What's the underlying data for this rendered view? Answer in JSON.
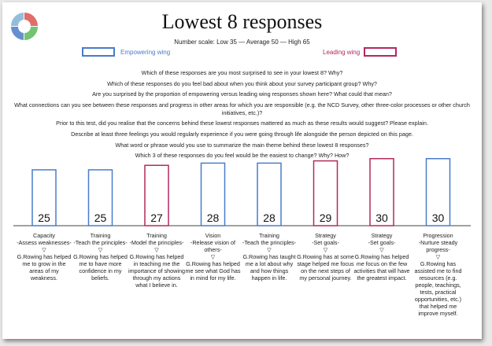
{
  "title": "Lowest 8 responses",
  "scale_text": "Number scale: Low 35 — Average 50 — High 65",
  "legend": {
    "empowering": {
      "label": "Empowering wing",
      "color": "#4a7cc8"
    },
    "leading": {
      "label": "Leading wing",
      "color": "#b22a5f"
    }
  },
  "questions": [
    "Which of these responses are you most surprised to see in your lowest 8? Why?",
    "Which of these responses do you feel bad about when you think about your survey participant group? Why?",
    "Are you surprised by the proportion of empowering versus leading wing responses shown here? What could that mean?",
    "What connections can you see between these responses and progress in other areas for which you are responsible (e.g. the NCD Survey, other three-color processes or other church initiatives, etc.)?",
    "Prior to this test, did you realise that the concerns behind these lowest responses mattered as much as these results would suggest? Please explain.",
    "Describe at least three feelings you would regularly experience if you were going through life alongside the person depicted on this page.",
    "What word or phrase would you use to summarize the main theme behind these lowest 8 responses?",
    "Which 3 of these responses do you feel would be the easiest to change? Why? How?"
  ],
  "chart_data": {
    "type": "bar",
    "ylim": [
      0,
      38
    ],
    "categories": [
      {
        "value": 25,
        "wing": "empowering",
        "name": "Capacity",
        "sub": "-Assess weaknesses-",
        "statement": "G.Rowing has helped me to grow in the areas of my weakness."
      },
      {
        "value": 25,
        "wing": "empowering",
        "name": "Training",
        "sub": "-Teach the principles-",
        "statement": "G.Rowing has helped me to have more confidence in my beliefs."
      },
      {
        "value": 27,
        "wing": "leading",
        "name": "Training",
        "sub": "-Model the principles-",
        "statement": "G.Rowing has helped in teaching me the importance of showing through my actions what I believe in."
      },
      {
        "value": 28,
        "wing": "empowering",
        "name": "Vision",
        "sub": "-Release vision of others-",
        "statement": "G.Rowing has helped me see what God has in mind for my life."
      },
      {
        "value": 28,
        "wing": "empowering",
        "name": "Training",
        "sub": "-Teach the principles-",
        "statement": "G.Rowing has taught me a lot about why and how things happen in life."
      },
      {
        "value": 29,
        "wing": "leading",
        "name": "Strategy",
        "sub": "-Set goals-",
        "statement": "G.Rowing has at some stage helped me focus on the next steps of my personal journey."
      },
      {
        "value": 30,
        "wing": "leading",
        "name": "Strategy",
        "sub": "-Set goals-",
        "statement": "G.Rowing has helped me focus on the few activities that will have the greatest impact."
      },
      {
        "value": 30,
        "wing": "empowering",
        "name": "Progression",
        "sub": "-Nurture steady progress-",
        "statement": "G.Rowing has assisted me to find resources (e.g. people, teachings, tests, practical opportunities, etc.) that helped me improve myself."
      }
    ]
  },
  "separator_glyph": "▽"
}
